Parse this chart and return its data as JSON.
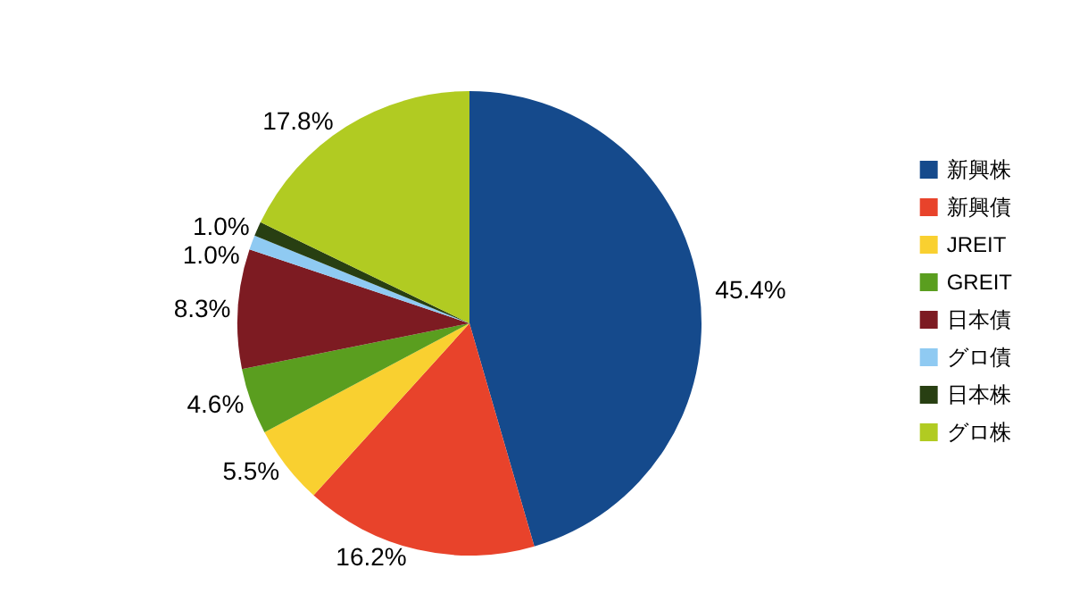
{
  "chart_data": {
    "type": "pie",
    "categories": [
      "新興株",
      "新興債",
      "JREIT",
      "GREIT",
      "日本債",
      "グロ債",
      "日本株",
      "グロ株"
    ],
    "values": [
      45.4,
      16.2,
      5.5,
      4.6,
      8.3,
      1.0,
      1.0,
      17.8
    ],
    "value_labels": [
      "45.4%",
      "16.2%",
      "5.5%",
      "4.6%",
      "8.3%",
      "1.0%",
      "1.0%",
      "17.8%"
    ],
    "colors": [
      "#154a8c",
      "#e8432b",
      "#f9d030",
      "#5a9e1f",
      "#7d1b22",
      "#8fcaf2",
      "#283f12",
      "#b1cb22"
    ],
    "legend": "right"
  }
}
